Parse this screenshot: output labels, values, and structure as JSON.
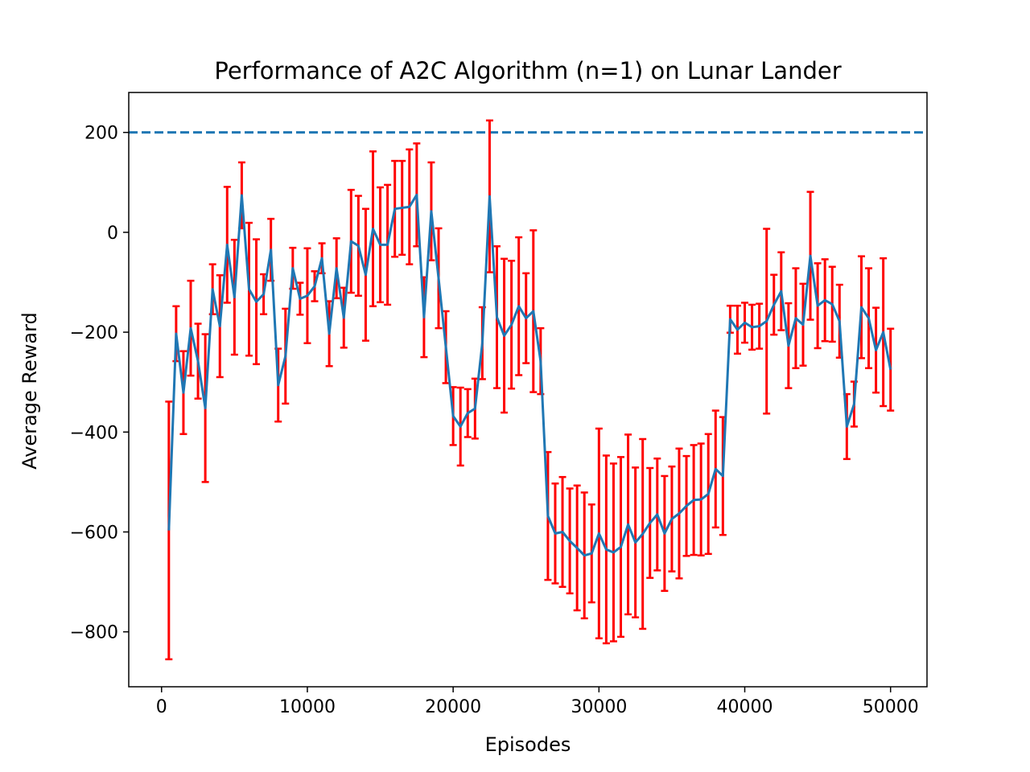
{
  "chart_data": {
    "type": "line",
    "title": "Performance of A2C Algorithm (n=1) on Lunar Lander",
    "xlabel": "Episodes",
    "ylabel": "Average Reward",
    "xlim": [
      -2250,
      52500
    ],
    "ylim": [
      -910,
      280
    ],
    "xticks": [
      0,
      10000,
      20000,
      30000,
      40000,
      50000
    ],
    "xtick_labels": [
      "0",
      "10000",
      "20000",
      "30000",
      "40000",
      "50000"
    ],
    "yticks": [
      -800,
      -600,
      -400,
      -200,
      0,
      200
    ],
    "ytick_labels": [
      "−800",
      "−600",
      "−400",
      "−200",
      "0",
      "200"
    ],
    "grid": false,
    "legend": "none",
    "reference_line": {
      "y": 200,
      "style": "dashed",
      "color": "#1f77b4"
    },
    "series": [
      {
        "color": "#1f77b4",
        "error_color": "#ff0000",
        "x": [
          500,
          1000,
          1500,
          2000,
          2500,
          3000,
          3500,
          4000,
          4500,
          5000,
          5500,
          6000,
          6500,
          7000,
          7500,
          8000,
          8500,
          9000,
          9500,
          10000,
          10500,
          11000,
          11500,
          12000,
          12500,
          13000,
          13500,
          14000,
          14500,
          15000,
          15500,
          16000,
          16500,
          17000,
          17500,
          18000,
          18500,
          19000,
          19500,
          20000,
          20500,
          21000,
          21500,
          22000,
          22500,
          23000,
          23500,
          24000,
          24500,
          25000,
          25500,
          26000,
          26500,
          27000,
          27500,
          28000,
          28500,
          29000,
          29500,
          30000,
          30500,
          31000,
          31500,
          32000,
          32500,
          33000,
          33500,
          34000,
          34500,
          35000,
          35500,
          36000,
          36500,
          37000,
          37500,
          38000,
          38500,
          39000,
          39500,
          40000,
          40500,
          41000,
          41500,
          42000,
          42500,
          43000,
          43500,
          44000,
          44500,
          45000,
          45500,
          46000,
          46500,
          47000,
          47500,
          48000,
          48500,
          49000,
          49500,
          50000
        ],
        "y": [
          -597,
          -203,
          -321,
          -192,
          -258,
          -352,
          -114,
          -188,
          -25,
          -130,
          74,
          -114,
          -139,
          -124,
          -35,
          -306,
          -248,
          -72,
          -133,
          -127,
          -108,
          -52,
          -203,
          -72,
          -171,
          -18,
          -27,
          -85,
          7,
          -25,
          -25,
          47,
          49,
          51,
          75,
          -170,
          42,
          -92,
          -230,
          -368,
          -389,
          -362,
          -353,
          -222,
          72,
          -170,
          -207,
          -185,
          -148,
          -172,
          -158,
          -258,
          -568,
          -603,
          -600,
          -618,
          -632,
          -647,
          -643,
          -603,
          -635,
          -641,
          -630,
          -585,
          -621,
          -604,
          -582,
          -565,
          -603,
          -574,
          -563,
          -548,
          -536,
          -535,
          -524,
          -474,
          -488,
          -174,
          -195,
          -181,
          -190,
          -188,
          -178,
          -145,
          -118,
          -227,
          -172,
          -185,
          -47,
          -147,
          -136,
          -144,
          -178,
          -389,
          -344,
          -150,
          -172,
          -236,
          -200,
          -275
        ],
        "y_err": [
          258,
          55,
          83,
          95,
          75,
          148,
          50,
          102,
          116,
          115,
          66,
          133,
          125,
          40,
          62,
          73,
          95,
          41,
          32,
          95,
          30,
          30,
          65,
          60,
          60,
          103,
          100,
          132,
          155,
          115,
          120,
          96,
          94,
          115,
          103,
          80,
          98,
          100,
          72,
          58,
          78,
          48,
          60,
          72,
          152,
          142,
          154,
          128,
          138,
          90,
          162,
          66,
          128,
          100,
          110,
          105,
          125,
          126,
          98,
          210,
          188,
          178,
          180,
          180,
          150,
          190,
          110,
          112,
          115,
          105,
          130,
          100,
          110,
          112,
          120,
          117,
          118,
          27,
          48,
          40,
          45,
          45,
          185,
          60,
          78,
          85,
          100,
          82,
          128,
          85,
          82,
          75,
          73,
          65,
          45,
          102,
          100,
          85,
          148,
          82
        ]
      }
    ]
  }
}
